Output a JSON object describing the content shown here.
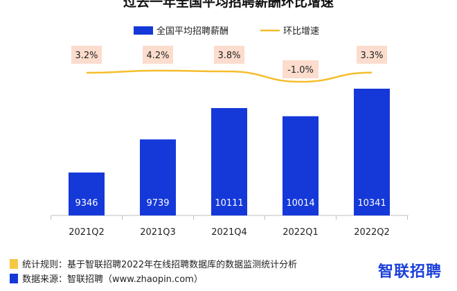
{
  "title": "过去一年全国平均招聘薪酬环比增速",
  "colors": {
    "bar": "#1538d9",
    "line": "#f5bd2a",
    "label_bg": "#fbdccd",
    "brand": "#1a3fd8"
  },
  "chart_data": {
    "type": "bar",
    "categories": [
      "2021Q2",
      "2021Q3",
      "2021Q4",
      "2022Q1",
      "2022Q2"
    ],
    "series": [
      {
        "name": "全国平均招聘薪酬",
        "type": "bar",
        "values": [
          9346,
          9739,
          10111,
          10014,
          10341
        ]
      },
      {
        "name": "环比增速",
        "type": "line",
        "values": [
          3.2,
          4.2,
          3.8,
          -1.0,
          3.3
        ],
        "labels": [
          "3.2%",
          "4.2%",
          "3.8%",
          "-1.0%",
          "3.3%"
        ]
      }
    ],
    "legend": "top-center",
    "grid": false
  },
  "footer": {
    "rule": "统计规则：基于智联招聘2022年在线招聘数据库的数据监测统计分析",
    "source": "数据来源：智联招聘（www.zhaopin.com）",
    "brand": "智联招聘",
    "icons": [
      "yellow-square-icon",
      "blue-square-icon"
    ]
  }
}
